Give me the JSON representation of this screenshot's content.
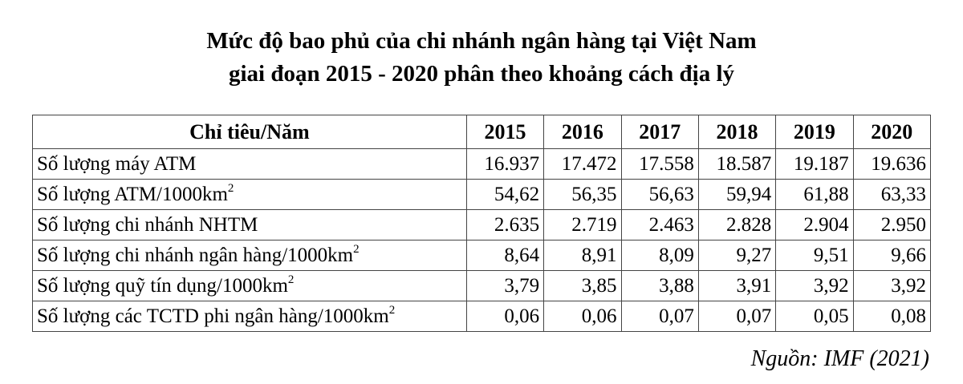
{
  "title": {
    "line1": "Mức độ bao phủ của chi nhánh ngân hàng tại Việt Nam",
    "line2": "giai đoạn 2015 - 2020 phân theo khoảng cách địa lý"
  },
  "table": {
    "header_label": "Chỉ tiêu/Năm",
    "years": [
      "2015",
      "2016",
      "2017",
      "2018",
      "2019",
      "2020"
    ],
    "rows": [
      {
        "label": "Số lượng máy ATM",
        "sup": "",
        "values": [
          "16.937",
          "17.472",
          "17.558",
          "18.587",
          "19.187",
          "19.636"
        ]
      },
      {
        "label": "Số lượng ATM/1000km",
        "sup": "2",
        "values": [
          "54,62",
          "56,35",
          "56,63",
          "59,94",
          "61,88",
          "63,33"
        ]
      },
      {
        "label": "Số lượng chi nhánh NHTM",
        "sup": "",
        "values": [
          "2.635",
          "2.719",
          "2.463",
          "2.828",
          "2.904",
          "2.950"
        ]
      },
      {
        "label": "Số lượng chi nhánh ngân hàng/1000km",
        "sup": "2",
        "values": [
          "8,64",
          "8,91",
          "8,09",
          "9,27",
          "9,51",
          "9,66"
        ]
      },
      {
        "label": "Số lượng quỹ tín dụng/1000km",
        "sup": "2",
        "values": [
          "3,79",
          "3,85",
          "3,88",
          "3,91",
          "3,92",
          "3,92"
        ]
      },
      {
        "label": "Số lượng các TCTD phi ngân hàng/1000km",
        "sup": "2",
        "values": [
          "0,06",
          "0,06",
          "0,07",
          "0,07",
          "0,05",
          "0,08"
        ]
      }
    ]
  },
  "source": "Nguồn: IMF (2021)"
}
